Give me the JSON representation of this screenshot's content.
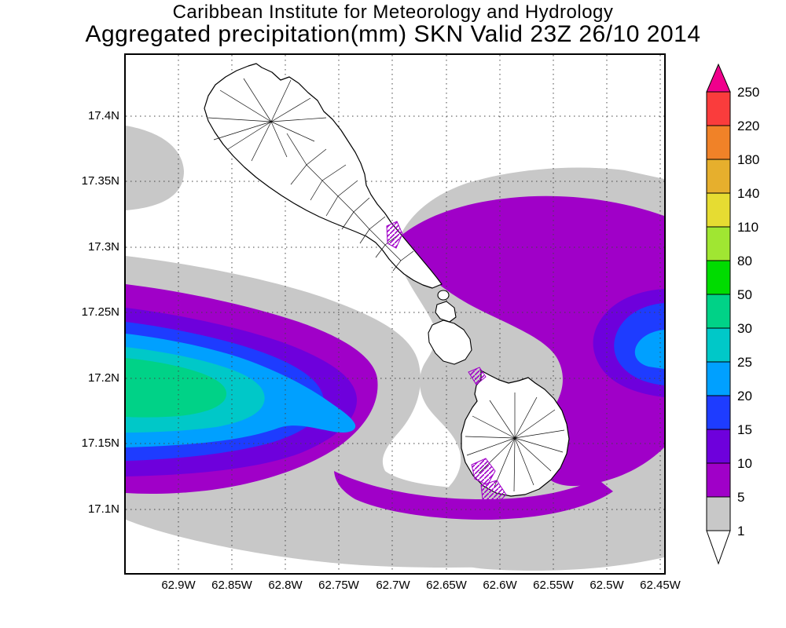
{
  "header": {
    "title_line1": "Caribbean Institute for Meteorology and Hydrology",
    "title_line2": "Aggregated precipitation(mm) SKN Valid 23Z 26/10 2014"
  },
  "map_axes": {
    "lat_labels": [
      "17.4N",
      "17.35N",
      "17.3N",
      "17.25N",
      "17.2N",
      "17.15N",
      "17.1N"
    ],
    "lon_labels": [
      "62.9W",
      "62.85W",
      "62.8W",
      "62.75W",
      "62.7W",
      "62.65W",
      "62.6W",
      "62.55W",
      "62.5W",
      "62.45W"
    ]
  },
  "legend": {
    "units": "mm",
    "levels": [
      "250",
      "220",
      "180",
      "140",
      "110",
      "80",
      "50",
      "30",
      "25",
      "20",
      "15",
      "10",
      "5",
      "1"
    ],
    "colors_top_to_bottom": [
      "#F0008C",
      "#FA3C3C",
      "#F08228",
      "#E6AF2D",
      "#E6DC32",
      "#A0E632",
      "#00DC00",
      "#00D287",
      "#00C8C8",
      "#00A0FF",
      "#1E3CFF",
      "#6E00DC",
      "#A000C8",
      "#C8C8C8",
      "#FFFFFF"
    ]
  }
}
